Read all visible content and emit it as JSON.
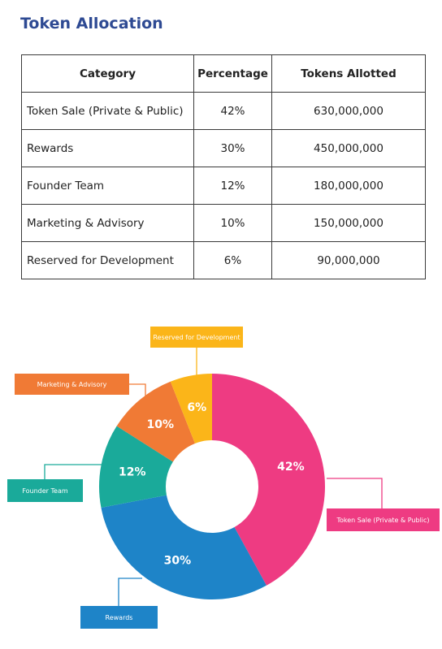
{
  "title": "Token Allocation",
  "table": {
    "headers": [
      "Category",
      "Percentage",
      "Tokens Allotted"
    ],
    "rows": [
      {
        "category": "Token Sale (Private & Public)",
        "percentage": "42%",
        "tokens": "630,000,000"
      },
      {
        "category": "Rewards",
        "percentage": "30%",
        "tokens": "450,000,000"
      },
      {
        "category": "Founder Team",
        "percentage": "12%",
        "tokens": "180,000,000"
      },
      {
        "category": "Marketing & Advisory",
        "percentage": "10%",
        "tokens": "150,000,000"
      },
      {
        "category": "Reserved for Development",
        "percentage": "6%",
        "tokens": "90,000,000"
      }
    ]
  },
  "chart_data": {
    "type": "pie",
    "variant": "donut",
    "categories": [
      "Token Sale (Private & Public)",
      "Rewards",
      "Founder Team",
      "Marketing & Advisory",
      "Reserved for Development"
    ],
    "values": [
      42,
      30,
      12,
      10,
      6
    ],
    "labels": [
      "42%",
      "30%",
      "12%",
      "10%",
      "6%"
    ],
    "colors": [
      "#ee3b82",
      "#1e84c8",
      "#1aaa9a",
      "#f07a35",
      "#fbb519"
    ],
    "title": ""
  }
}
